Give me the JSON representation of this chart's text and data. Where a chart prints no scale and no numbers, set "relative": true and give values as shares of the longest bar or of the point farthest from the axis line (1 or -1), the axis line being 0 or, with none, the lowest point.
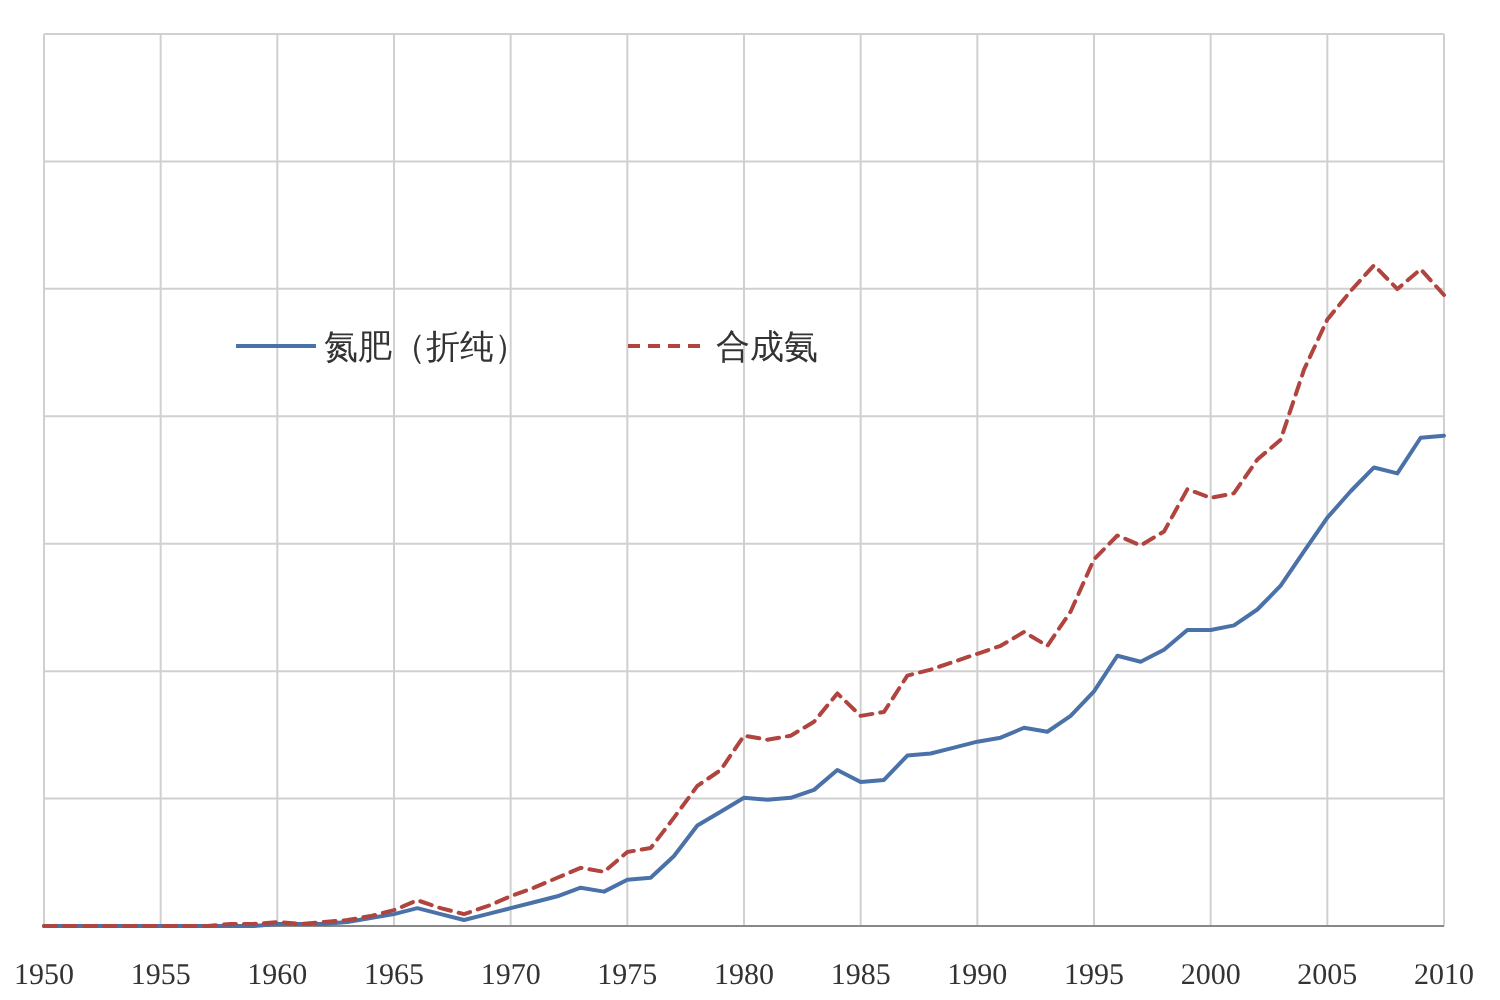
{
  "chart_data": {
    "type": "line",
    "relative": true,
    "grid": true,
    "legend": "top left",
    "x": [
      1950,
      1951,
      1952,
      1953,
      1954,
      1955,
      1956,
      1957,
      1958,
      1959,
      1960,
      1961,
      1962,
      1963,
      1964,
      1965,
      1966,
      1967,
      1968,
      1969,
      1970,
      1971,
      1972,
      1973,
      1974,
      1975,
      1976,
      1977,
      1978,
      1979,
      1980,
      1981,
      1982,
      1983,
      1984,
      1985,
      1986,
      1987,
      1988,
      1989,
      1990,
      1991,
      1992,
      1993,
      1994,
      1995,
      1996,
      1997,
      1998,
      1999,
      2000,
      2001,
      2002,
      2003,
      2004,
      2005,
      2006,
      2007,
      2008,
      2009,
      2010
    ],
    "xlim": [
      1950,
      2010
    ],
    "xticks": [
      1950,
      1955,
      1960,
      1965,
      1970,
      1975,
      1980,
      1985,
      1990,
      1995,
      2000,
      2005,
      2010
    ],
    "series": [
      {
        "name": "氮肥（折纯）",
        "color": "#4a72a8",
        "line_style": "solid",
        "values": [
          0,
          0,
          0,
          0,
          0,
          0,
          0,
          0,
          0,
          0,
          0.003,
          0.003,
          0.003,
          0.006,
          0.012,
          0.018,
          0.027,
          0.018,
          0.009,
          0.018,
          0.027,
          0.036,
          0.045,
          0.058,
          0.052,
          0.07,
          0.073,
          0.106,
          0.152,
          0.173,
          0.194,
          0.191,
          0.194,
          0.206,
          0.236,
          0.218,
          0.221,
          0.258,
          0.261,
          0.27,
          0.279,
          0.285,
          0.3,
          0.294,
          0.318,
          0.355,
          0.409,
          0.4,
          0.418,
          0.448,
          0.448,
          0.455,
          0.479,
          0.515,
          0.567,
          0.618,
          0.658,
          0.694,
          0.685,
          0.739,
          0.742
        ]
      },
      {
        "name": "合成氨",
        "color": "#b0443f",
        "line_style": "dashed",
        "values": [
          0,
          0,
          0,
          0,
          0,
          0,
          0,
          0,
          0.003,
          0.003,
          0.006,
          0.003,
          0.006,
          0.009,
          0.015,
          0.024,
          0.039,
          0.027,
          0.018,
          0.03,
          0.045,
          0.058,
          0.073,
          0.088,
          0.082,
          0.112,
          0.118,
          0.164,
          0.212,
          0.236,
          0.288,
          0.282,
          0.288,
          0.309,
          0.352,
          0.318,
          0.324,
          0.379,
          0.388,
          0.4,
          0.412,
          0.424,
          0.445,
          0.424,
          0.476,
          0.555,
          0.591,
          0.576,
          0.597,
          0.661,
          0.648,
          0.655,
          0.706,
          0.736,
          0.842,
          0.918,
          0.961,
          1,
          0.964,
          0.994,
          0.955
        ]
      }
    ]
  }
}
